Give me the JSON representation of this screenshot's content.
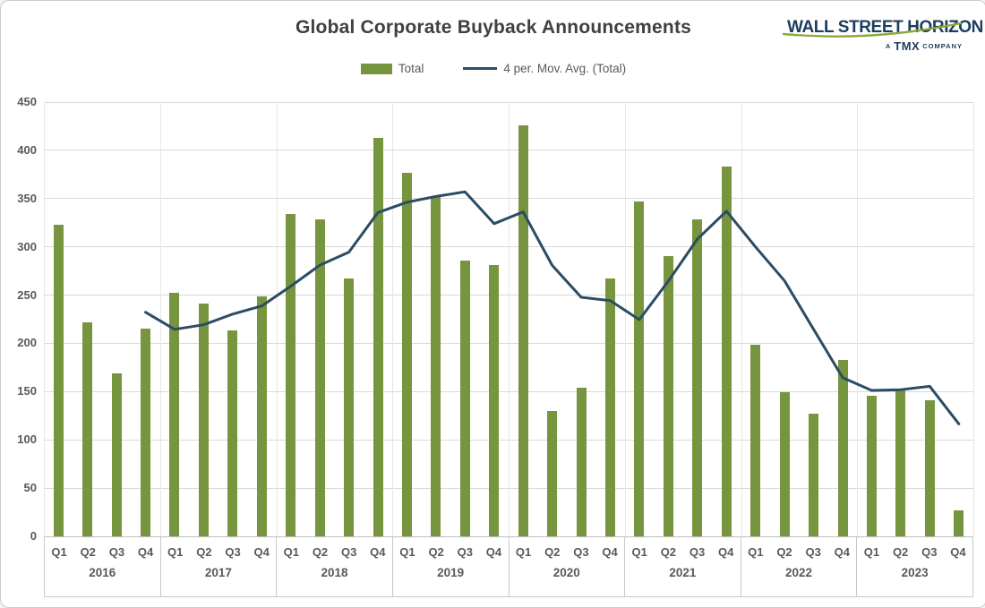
{
  "title": "Global Corporate Buyback Announcements",
  "legend": {
    "bar_label": "Total",
    "line_label": "4 per. Mov. Avg. (Total)"
  },
  "logo": {
    "name": "WALL STREET HORIZON",
    "tagline_a": "A",
    "tagline_tmx": "TMX",
    "tagline_company": "COMPANY"
  },
  "colors": {
    "bar_green": "#77953e",
    "line_navy": "#2c4c63",
    "logo_navy": "#1c3d5d",
    "logo_green": "#8ca93b",
    "grid": "#d9d9d9",
    "axis_text": "#595959",
    "title_text": "#404040"
  },
  "chart_data": {
    "type": "bar",
    "title": "Global Corporate Buyback Announcements",
    "years": [
      "2016",
      "2017",
      "2018",
      "2019",
      "2020",
      "2021",
      "2022",
      "2023"
    ],
    "quarter_labels": [
      "Q1",
      "Q2",
      "Q3",
      "Q4"
    ],
    "categories": [
      "Q1 2016",
      "Q2 2016",
      "Q3 2016",
      "Q4 2016",
      "Q1 2017",
      "Q2 2017",
      "Q3 2017",
      "Q4 2017",
      "Q1 2018",
      "Q2 2018",
      "Q3 2018",
      "Q4 2018",
      "Q1 2019",
      "Q2 2019",
      "Q3 2019",
      "Q4 2019",
      "Q1 2020",
      "Q2 2020",
      "Q3 2020",
      "Q4 2020",
      "Q1 2021",
      "Q2 2021",
      "Q3 2021",
      "Q4 2021",
      "Q1 2022",
      "Q2 2022",
      "Q3 2022",
      "Q4 2022",
      "Q1 2023",
      "Q2 2023",
      "Q3 2023",
      "Q4 2023"
    ],
    "series": [
      {
        "name": "Total",
        "type": "bar",
        "color": "#77953e",
        "values": [
          323,
          222,
          169,
          215,
          252,
          241,
          213,
          249,
          334,
          328,
          267,
          413,
          377,
          352,
          286,
          281,
          426,
          130,
          154,
          267,
          347,
          290,
          328,
          383,
          199,
          149,
          127,
          183,
          146,
          152,
          141,
          27
        ]
      },
      {
        "name": "4 per. Mov. Avg. (Total)",
        "type": "line",
        "color": "#2c4c63",
        "values": [
          null,
          null,
          null,
          232.25,
          214.5,
          219.25,
          230.25,
          238.75,
          259.25,
          281,
          294.5,
          335.5,
          346.25,
          352.25,
          357,
          324,
          336.25,
          280.75,
          247.75,
          244.25,
          224.5,
          264.5,
          308,
          337,
          300,
          264.75,
          214.5,
          164.5,
          151.25,
          152,
          155.5,
          116.5
        ]
      }
    ],
    "xlabel": "",
    "ylabel": "",
    "ylim": [
      0,
      450
    ],
    "ytick_interval": 50,
    "yticks": [
      0,
      50,
      100,
      150,
      200,
      250,
      300,
      350,
      400,
      450
    ],
    "grid": true,
    "legend_position": "top"
  }
}
